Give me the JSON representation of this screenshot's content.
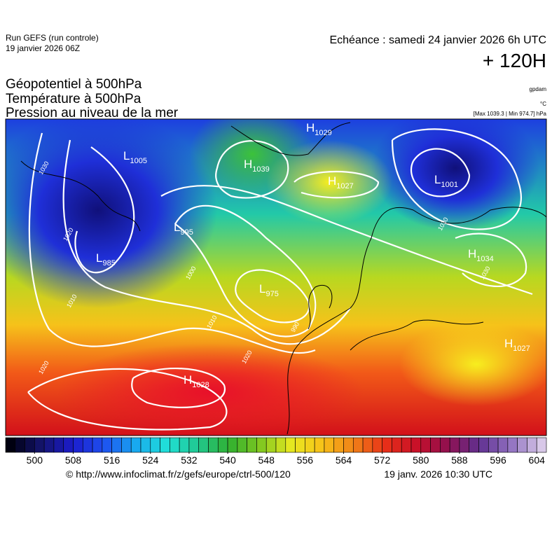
{
  "header": {
    "run": "Run GEFS (run controle)",
    "run_date": "19 janvier 2026 06Z",
    "echeance": "Echéance : samedi 24 janvier 2026 6h UTC",
    "lead": "+ 120H"
  },
  "titles": [
    "Géopotentiel à 500hPa",
    "Température à 500hPa",
    "Pression au niveau de la mer"
  ],
  "units": {
    "geopotential": "gpdam",
    "temperature": "°C",
    "pressure": "[Max 1039.3 | Min 974.7] hPa"
  },
  "centers": [
    {
      "letter": "H",
      "value": 1029
    },
    {
      "letter": "H",
      "value": 1039
    },
    {
      "letter": "H",
      "value": 1027
    },
    {
      "letter": "L",
      "value": 1005
    },
    {
      "letter": "L",
      "value": 1001
    },
    {
      "letter": "L",
      "value": 995
    },
    {
      "letter": "L",
      "value": 985
    },
    {
      "letter": "L",
      "value": 975
    },
    {
      "letter": "H",
      "value": 1034
    },
    {
      "letter": "H",
      "value": 1028
    },
    {
      "letter": "H",
      "value": 1027
    }
  ],
  "isobar_labels": [
    1030,
    1020,
    1010,
    1000,
    990,
    1010,
    1020,
    1020,
    1030,
    1030
  ],
  "colorbar": {
    "min": 494,
    "max": 606,
    "step": 2,
    "ticks": [
      500,
      508,
      516,
      524,
      532,
      540,
      548,
      556,
      564,
      572,
      580,
      588,
      596,
      604
    ]
  },
  "footer": {
    "url": "© http://www.infoclimat.fr/z/gefs/europe/ctrl-500/120",
    "date": "19 janv. 2026 10:30 UTC"
  }
}
